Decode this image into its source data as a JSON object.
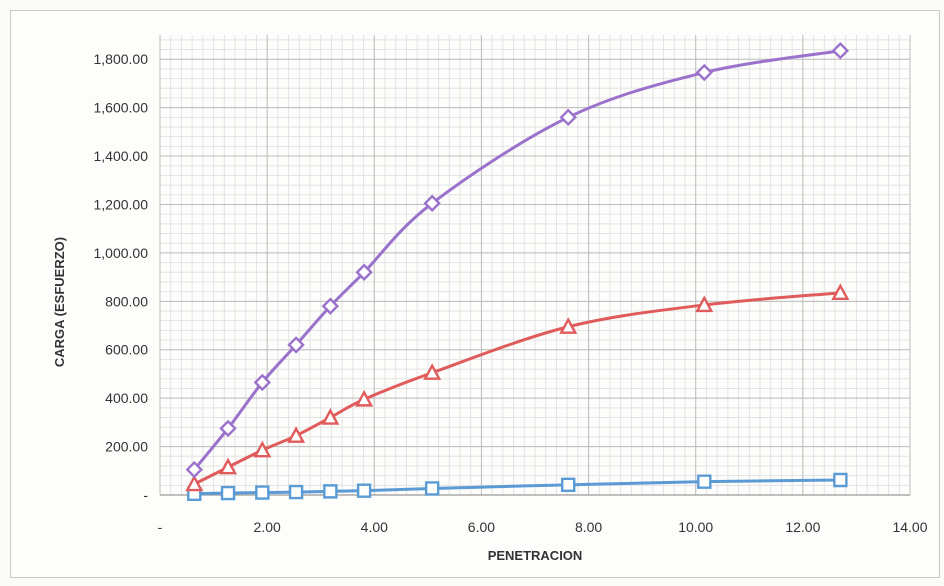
{
  "chart_data": {
    "type": "line",
    "title": "",
    "xlabel": "PENETRACION",
    "ylabel": "CARGA (ESFUERZO)",
    "xlim": [
      0,
      14
    ],
    "ylim": [
      0,
      1900
    ],
    "x_ticks": [
      0,
      2,
      4,
      6,
      8,
      10,
      12,
      14
    ],
    "x_tick_labels": [
      "-",
      "2.00",
      "4.00",
      "6.00",
      "8.00",
      "10.00",
      "12.00",
      "14.00"
    ],
    "y_ticks": [
      0,
      200,
      400,
      600,
      800,
      1000,
      1200,
      1400,
      1600,
      1800
    ],
    "y_tick_labels": [
      "-",
      "200.00",
      "400.00",
      "600.00",
      "800.00",
      "1,000.00",
      "1,200.00",
      "1,400.00",
      "1,600.00",
      "1,800.00"
    ],
    "grid": true,
    "legend": "none",
    "x": [
      0.64,
      1.27,
      1.91,
      2.54,
      3.18,
      3.81,
      5.08,
      7.62,
      10.16,
      12.7
    ],
    "series": [
      {
        "marker": "square",
        "color": "#5b9bd5",
        "values": [
          5,
          8,
          10,
          12,
          15,
          18,
          27,
          42,
          55,
          62
        ]
      },
      {
        "marker": "triangle",
        "color": "#e05b5b",
        "values": [
          45,
          115,
          185,
          245,
          320,
          395,
          505,
          695,
          785,
          835
        ]
      },
      {
        "marker": "diamond",
        "color": "#9a72cc",
        "values": [
          105,
          275,
          465,
          620,
          780,
          920,
          1205,
          1560,
          1745,
          1835
        ]
      }
    ]
  }
}
